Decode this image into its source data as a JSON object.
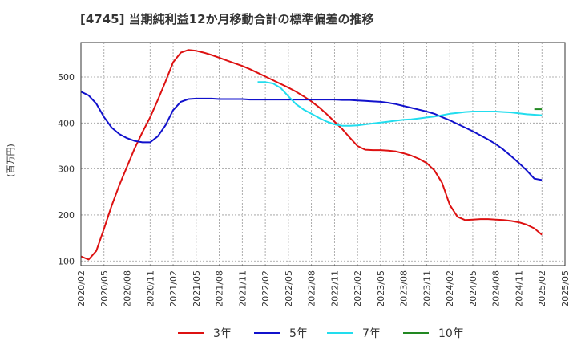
{
  "chart_data": {
    "type": "line",
    "title": "[4745]  当期純利益12か月移動合計の標準偏差の推移",
    "ylabel": "(百万円)",
    "xlabel": "",
    "ylim": [
      90,
      575
    ],
    "yticks": [
      100,
      200,
      300,
      400,
      500
    ],
    "xlim": [
      "2020-02",
      "2025-05"
    ],
    "xticks": [
      "2020/02",
      "2020/05",
      "2020/08",
      "2020/11",
      "2021/02",
      "2021/05",
      "2021/08",
      "2021/11",
      "2022/02",
      "2022/05",
      "2022/08",
      "2022/11",
      "2023/02",
      "2023/05",
      "2023/08",
      "2023/11",
      "2024/02",
      "2024/05",
      "2024/08",
      "2024/11",
      "2025/02",
      "2025/05"
    ],
    "grid": true,
    "legend_position": "bottom",
    "series": [
      {
        "name": "3年",
        "color": "#dd1111",
        "points": [
          [
            "2020-02",
            110
          ],
          [
            "2020-03",
            103
          ],
          [
            "2020-04",
            122
          ],
          [
            "2020-05",
            170
          ],
          [
            "2020-06",
            220
          ],
          [
            "2020-07",
            265
          ],
          [
            "2020-08",
            305
          ],
          [
            "2020-09",
            345
          ],
          [
            "2020-10",
            380
          ],
          [
            "2020-11",
            412
          ],
          [
            "2020-12",
            450
          ],
          [
            "2021-01",
            490
          ],
          [
            "2021-02",
            532
          ],
          [
            "2021-03",
            553
          ],
          [
            "2021-04",
            559
          ],
          [
            "2021-05",
            557
          ],
          [
            "2021-06",
            553
          ],
          [
            "2021-07",
            548
          ],
          [
            "2021-08",
            542
          ],
          [
            "2021-09",
            536
          ],
          [
            "2021-10",
            530
          ],
          [
            "2021-11",
            524
          ],
          [
            "2021-12",
            517
          ],
          [
            "2022-01",
            509
          ],
          [
            "2022-02",
            501
          ],
          [
            "2022-03",
            493
          ],
          [
            "2022-04",
            485
          ],
          [
            "2022-05",
            477
          ],
          [
            "2022-06",
            468
          ],
          [
            "2022-07",
            458
          ],
          [
            "2022-08",
            447
          ],
          [
            "2022-09",
            434
          ],
          [
            "2022-10",
            419
          ],
          [
            "2022-11",
            403
          ],
          [
            "2022-12",
            387
          ],
          [
            "2023-01",
            368
          ],
          [
            "2023-02",
            350
          ],
          [
            "2023-03",
            342
          ],
          [
            "2023-04",
            341
          ],
          [
            "2023-05",
            341
          ],
          [
            "2023-06",
            340
          ],
          [
            "2023-07",
            338
          ],
          [
            "2023-08",
            334
          ],
          [
            "2023-09",
            329
          ],
          [
            "2023-10",
            322
          ],
          [
            "2023-11",
            313
          ],
          [
            "2023-12",
            297
          ],
          [
            "2024-01",
            270
          ],
          [
            "2024-02",
            222
          ],
          [
            "2024-03",
            196
          ],
          [
            "2024-04",
            189
          ],
          [
            "2024-05",
            190
          ],
          [
            "2024-06",
            191
          ],
          [
            "2024-07",
            191
          ],
          [
            "2024-08",
            190
          ],
          [
            "2024-09",
            189
          ],
          [
            "2024-10",
            187
          ],
          [
            "2024-11",
            184
          ],
          [
            "2024-12",
            179
          ],
          [
            "2025-01",
            171
          ],
          [
            "2025-02",
            157
          ]
        ]
      },
      {
        "name": "5年",
        "color": "#1111cc",
        "points": [
          [
            "2020-02",
            468
          ],
          [
            "2020-03",
            460
          ],
          [
            "2020-04",
            442
          ],
          [
            "2020-05",
            413
          ],
          [
            "2020-06",
            390
          ],
          [
            "2020-07",
            376
          ],
          [
            "2020-08",
            367
          ],
          [
            "2020-09",
            361
          ],
          [
            "2020-10",
            358
          ],
          [
            "2020-11",
            358
          ],
          [
            "2020-12",
            371
          ],
          [
            "2021-01",
            395
          ],
          [
            "2021-02",
            428
          ],
          [
            "2021-03",
            446
          ],
          [
            "2021-04",
            452
          ],
          [
            "2021-05",
            453
          ],
          [
            "2021-06",
            453
          ],
          [
            "2021-07",
            453
          ],
          [
            "2021-08",
            452
          ],
          [
            "2021-09",
            452
          ],
          [
            "2021-10",
            452
          ],
          [
            "2021-11",
            452
          ],
          [
            "2021-12",
            451
          ],
          [
            "2022-01",
            451
          ],
          [
            "2022-02",
            451
          ],
          [
            "2022-03",
            451
          ],
          [
            "2022-04",
            451
          ],
          [
            "2022-05",
            451
          ],
          [
            "2022-06",
            451
          ],
          [
            "2022-07",
            451
          ],
          [
            "2022-08",
            451
          ],
          [
            "2022-09",
            451
          ],
          [
            "2022-10",
            451
          ],
          [
            "2022-11",
            451
          ],
          [
            "2022-12",
            450
          ],
          [
            "2023-01",
            450
          ],
          [
            "2023-02",
            449
          ],
          [
            "2023-03",
            448
          ],
          [
            "2023-04",
            447
          ],
          [
            "2023-05",
            446
          ],
          [
            "2023-06",
            444
          ],
          [
            "2023-07",
            441
          ],
          [
            "2023-08",
            437
          ],
          [
            "2023-09",
            433
          ],
          [
            "2023-10",
            429
          ],
          [
            "2023-11",
            425
          ],
          [
            "2023-12",
            420
          ],
          [
            "2024-01",
            413
          ],
          [
            "2024-02",
            406
          ],
          [
            "2024-03",
            398
          ],
          [
            "2024-04",
            390
          ],
          [
            "2024-05",
            382
          ],
          [
            "2024-06",
            373
          ],
          [
            "2024-07",
            364
          ],
          [
            "2024-08",
            354
          ],
          [
            "2024-09",
            342
          ],
          [
            "2024-10",
            328
          ],
          [
            "2024-11",
            313
          ],
          [
            "2024-12",
            297
          ],
          [
            "2025-01",
            279
          ],
          [
            "2025-02",
            276
          ]
        ]
      },
      {
        "name": "7年",
        "color": "#22ddee",
        "points": [
          [
            "2022-01",
            489
          ],
          [
            "2022-02",
            489
          ],
          [
            "2022-03",
            486
          ],
          [
            "2022-04",
            476
          ],
          [
            "2022-05",
            458
          ],
          [
            "2022-06",
            441
          ],
          [
            "2022-07",
            429
          ],
          [
            "2022-08",
            420
          ],
          [
            "2022-09",
            411
          ],
          [
            "2022-10",
            403
          ],
          [
            "2022-11",
            397
          ],
          [
            "2022-12",
            394
          ],
          [
            "2023-01",
            394
          ],
          [
            "2023-02",
            395
          ],
          [
            "2023-03",
            397
          ],
          [
            "2023-04",
            399
          ],
          [
            "2023-05",
            401
          ],
          [
            "2023-06",
            403
          ],
          [
            "2023-07",
            405
          ],
          [
            "2023-08",
            407
          ],
          [
            "2023-09",
            408
          ],
          [
            "2023-10",
            410
          ],
          [
            "2023-11",
            412
          ],
          [
            "2023-12",
            414
          ],
          [
            "2024-01",
            417
          ],
          [
            "2024-02",
            420
          ],
          [
            "2024-03",
            422
          ],
          [
            "2024-04",
            424
          ],
          [
            "2024-05",
            425
          ],
          [
            "2024-06",
            425
          ],
          [
            "2024-07",
            425
          ],
          [
            "2024-08",
            425
          ],
          [
            "2024-09",
            424
          ],
          [
            "2024-10",
            423
          ],
          [
            "2024-11",
            421
          ],
          [
            "2024-12",
            419
          ],
          [
            "2025-01",
            418
          ],
          [
            "2025-02",
            417
          ]
        ]
      },
      {
        "name": "10年",
        "color": "#228822",
        "points": [
          [
            "2025-01",
            430
          ],
          [
            "2025-02",
            430
          ]
        ]
      }
    ]
  }
}
